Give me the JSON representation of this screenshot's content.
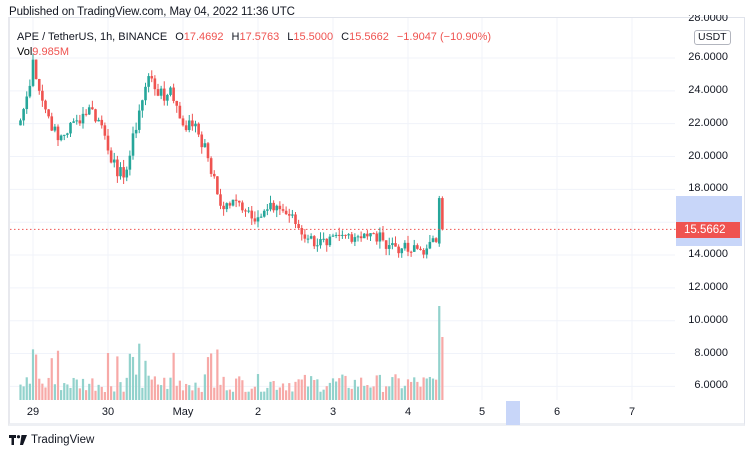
{
  "header": {
    "published_text": "Published on TradingView.com, May 04, 2022 11:36 UTC"
  },
  "legend": {
    "symbol": "APE / TetherUS, 1h, BINANCE",
    "open_label": "O",
    "open": "17.4692",
    "high_label": "H",
    "high": "17.5763",
    "low_label": "L",
    "low": "15.5000",
    "close_label": "C",
    "close": "15.5662",
    "change": "−1.9047 (−10.90%)",
    "vol_label": "Vol",
    "vol_value": "9.985M"
  },
  "price_axis": {
    "currency": "USDT",
    "ticks": [
      "28.0000",
      "26.0000",
      "24.0000",
      "22.0000",
      "20.0000",
      "18.0000",
      "16.0000",
      "14.0000",
      "12.0000",
      "10.0000",
      "8.0000",
      "6.0000"
    ],
    "current_price": "15.5662"
  },
  "time_axis": {
    "ticks": [
      "29",
      "30",
      "May",
      "2",
      "3",
      "4",
      "5",
      "6",
      "7"
    ]
  },
  "footer": {
    "brand": "TradingView"
  },
  "colors": {
    "up": "#26a69a",
    "down": "#ef5350",
    "up_volume": "#92d2cc",
    "down_volume": "#f7a9a7",
    "highlight": "#c8d6f9",
    "grid": "#f0f3fa"
  },
  "chart_data": {
    "type": "candlestick",
    "title": "APE / TetherUS, 1h, BINANCE",
    "xlabel": "",
    "ylabel": "USDT",
    "ylim": [
      5.0,
      28.0
    ],
    "grid": true,
    "legend_position": "top-left",
    "x_ticks": [
      "29",
      "30",
      "May",
      "2",
      "3",
      "4",
      "5",
      "6",
      "7"
    ],
    "y_ticks": [
      28,
      26,
      24,
      22,
      20,
      18,
      16,
      14,
      12,
      10,
      8,
      6
    ],
    "last_bar": {
      "open": 17.4692,
      "high": 17.5763,
      "low": 15.5,
      "close": 15.5662,
      "change": -1.9047,
      "change_pct": -10.9,
      "volume": "9.985M"
    },
    "current_price": 15.5662,
    "close_path": [
      {
        "x": "Apr 28 20:00",
        "close": 22.2
      },
      {
        "x": "Apr 28 23:00",
        "close": 24.3
      },
      {
        "x": "Apr 29 00:00",
        "close": 25.9
      },
      {
        "x": "Apr 29 03:00",
        "close": 23.4
      },
      {
        "x": "Apr 29 08:00",
        "close": 21.0
      },
      {
        "x": "Apr 29 14:00",
        "close": 22.2
      },
      {
        "x": "Apr 29 18:00",
        "close": 23.0
      },
      {
        "x": "Apr 29 22:00",
        "close": 21.9
      },
      {
        "x": "Apr 30 03:00",
        "close": 18.8
      },
      {
        "x": "Apr 30 06:00",
        "close": 19.2
      },
      {
        "x": "Apr 30 10:00",
        "close": 22.8
      },
      {
        "x": "Apr 30 13:00",
        "close": 24.9
      },
      {
        "x": "Apr 30 18:00",
        "close": 23.4
      },
      {
        "x": "Apr 30 20:00",
        "close": 24.2
      },
      {
        "x": "May 01 00:00",
        "close": 21.9
      },
      {
        "x": "May 01 04:00",
        "close": 22.0
      },
      {
        "x": "May 01 08:00",
        "close": 19.9
      },
      {
        "x": "May 01 12:00",
        "close": 17.0
      },
      {
        "x": "May 01 18:00",
        "close": 17.2
      },
      {
        "x": "May 02 00:00",
        "close": 16.3
      },
      {
        "x": "May 02 06:00",
        "close": 17.0
      },
      {
        "x": "May 02 10:00",
        "close": 16.4
      },
      {
        "x": "May 02 16:00",
        "close": 15.0
      },
      {
        "x": "May 02 22:00",
        "close": 14.6
      },
      {
        "x": "May 03 04:00",
        "close": 15.2
      },
      {
        "x": "May 03 10:00",
        "close": 15.3
      },
      {
        "x": "May 03 16:00",
        "close": 14.9
      },
      {
        "x": "May 03 22:00",
        "close": 14.4
      },
      {
        "x": "May 04 00:00",
        "close": 14.2
      },
      {
        "x": "May 04 06:00",
        "close": 14.4
      },
      {
        "x": "May 04 09:00",
        "close": 14.8
      },
      {
        "x": "May 04 10:00",
        "close": 17.47
      },
      {
        "x": "May 04 11:00",
        "close": 15.5662
      }
    ],
    "volume_notes": "Volume spike at May 04 10:00 (largest bar, up), May 04 11:00 = 9.985M (down)"
  }
}
